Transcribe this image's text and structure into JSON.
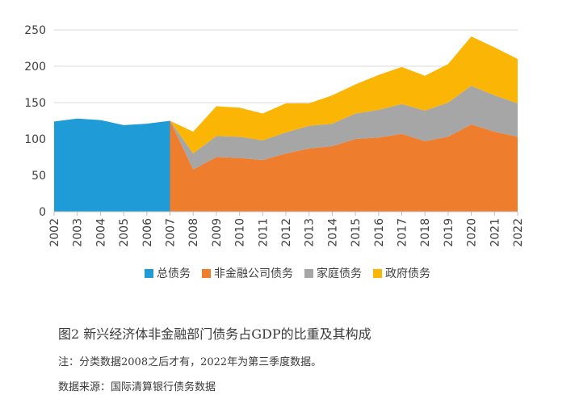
{
  "chart_data": {
    "type": "area",
    "x": [
      "2002",
      "2003",
      "2004",
      "2005",
      "2006",
      "2007",
      "2008",
      "2009",
      "2010",
      "2011",
      "2012",
      "2013",
      "2014",
      "2015",
      "2016",
      "2017",
      "2018",
      "2019",
      "2020",
      "2021",
      "2022"
    ],
    "ylim": [
      0,
      250
    ],
    "yticks": [
      0,
      50,
      100,
      150,
      200,
      250
    ],
    "grid": true,
    "legend_position": "bottom",
    "series": [
      {
        "name": "总债务",
        "color": "#1f9bd7",
        "values": [
          124,
          128,
          126,
          119,
          121,
          125,
          0,
          null,
          null,
          null,
          null,
          null,
          null,
          null,
          null,
          null,
          null,
          null,
          null,
          null,
          null
        ]
      },
      {
        "name": "非金融公司债务",
        "color": "#ee7d2e",
        "values": [
          null,
          null,
          null,
          null,
          null,
          125,
          58,
          75,
          74,
          71,
          80,
          87,
          90,
          100,
          102,
          107,
          97,
          103,
          120,
          110,
          103
        ]
      },
      {
        "name": "家庭债务",
        "color": "#a6a6a6",
        "values": [
          null,
          null,
          null,
          null,
          null,
          0,
          22,
          29,
          29,
          27,
          29,
          31,
          31,
          35,
          38,
          41,
          42,
          47,
          53,
          50,
          46
        ]
      },
      {
        "name": "政府债务",
        "color": "#fbb605",
        "values": [
          null,
          null,
          null,
          null,
          null,
          0,
          30,
          41,
          40,
          37,
          40,
          31,
          39,
          40,
          48,
          51,
          48,
          53,
          68,
          66,
          61
        ]
      }
    ]
  },
  "caption": "图2 新兴经济体非金融部门债务占GDP的比重及其构成",
  "note": "注：分类数据2008之后才有，2022年为第三季度数据。",
  "source": "数据来源：国际清算银行债务数据"
}
